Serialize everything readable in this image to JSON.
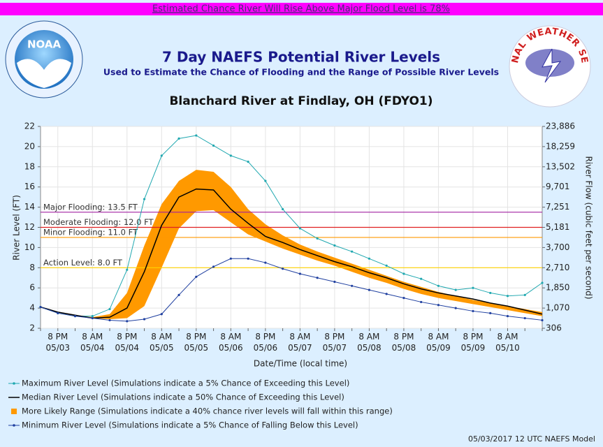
{
  "banner": "Estimated Chance River Will Rise Above Major Flood Level is 78%",
  "logos": {
    "noaa": "NOAA",
    "nws": "NATIONAL WEATHER SERVICE"
  },
  "footer": "05/03/2017 12 UTC NAEFS Model",
  "chart_data": {
    "type": "line",
    "title": "7 Day NAEFS Potential River Levels",
    "subtitle": "Used to Estimate the Chance of Flooding and the Range of Possible River Levels",
    "location": "Blanchard River at Findlay, OH (FDYO1)",
    "x_label": "Date/Time (local time)",
    "y_label": "River Level (FT)",
    "y2_label": "River Flow (cubic feet per second)",
    "categories": [
      null,
      "8 PM 05/03",
      null,
      "8 AM 05/04",
      null,
      "8 PM 05/04",
      null,
      "8 AM 05/05",
      null,
      "8 PM 05/05",
      null,
      "8 AM 05/06",
      null,
      "8 PM 05/06",
      null,
      "8 AM 05/07",
      null,
      "8 PM 05/07",
      null,
      "8 AM 05/08",
      null,
      "8 PM 05/08",
      null,
      "8 AM 05/09",
      null,
      "8 PM 05/09",
      null,
      "8 AM 05/10",
      null,
      null
    ],
    "ylim": [
      2,
      22
    ],
    "yticks": [
      2,
      4,
      6,
      8,
      10,
      12,
      14,
      16,
      18,
      20,
      22
    ],
    "y2ticks": [
      306,
      {
        "value": 1070,
        "label": "1,070"
      },
      {
        "value": 1850,
        "label": "1,850"
      },
      {
        "value": 2710,
        "label": "2,710"
      },
      {
        "value": 3700,
        "label": "3,700"
      },
      {
        "value": 5181,
        "label": "5,181"
      },
      {
        "value": 7251,
        "label": "7,251"
      },
      {
        "value": 9701,
        "label": "9,701"
      },
      {
        "value": 13502,
        "label": "13,502"
      },
      {
        "value": 18259,
        "label": "18,259"
      },
      {
        "value": 23886,
        "label": "23,886"
      }
    ],
    "grid": true,
    "thresholds": [
      {
        "label": "Major Flooding: 13.5 FT",
        "value": 13.5,
        "color": "#a020a0"
      },
      {
        "label": "Moderate Flooding: 12.0 FT",
        "value": 12.0,
        "color": "#e02020"
      },
      {
        "label": "Minor Flooding: 11.0 FT",
        "value": 11.0,
        "color": "#ff9900"
      },
      {
        "label": "Action Level: 8.0 FT",
        "value": 8.0,
        "color": "#ffd400"
      }
    ],
    "series": [
      {
        "name": "Maximum River Level (Simulations indicate a 5% Chance of Exceeding this Level)",
        "color": "#20a8b0",
        "values": [
          4.1,
          3.5,
          3.2,
          3.2,
          3.9,
          7.8,
          14.8,
          19.1,
          20.8,
          21.1,
          20.1,
          19.1,
          18.5,
          16.6,
          13.8,
          11.9,
          10.9,
          10.2,
          9.6,
          8.9,
          8.2,
          7.4,
          6.9,
          6.2,
          5.8,
          6.0,
          5.5,
          5.2,
          5.3,
          6.5
        ]
      },
      {
        "name": "Median River Level (Simulations indicate a 50% Chance of Exceeding this Level)",
        "color": "#000000",
        "values": [
          4.1,
          3.6,
          3.3,
          3.0,
          3.1,
          4.0,
          7.6,
          12.2,
          15.0,
          15.8,
          15.7,
          13.8,
          12.4,
          11.1,
          10.5,
          9.8,
          9.2,
          8.6,
          8.1,
          7.5,
          7.0,
          6.4,
          5.9,
          5.5,
          5.2,
          4.9,
          4.5,
          4.2,
          3.8,
          3.4
        ]
      },
      {
        "name": "More Likely Range (Simulations indicate a 40% chance river levels will fall within this range)",
        "color": "#ff9900",
        "upper": [
          4.1,
          3.6,
          3.3,
          3.1,
          3.4,
          5.5,
          10.2,
          14.3,
          16.6,
          17.7,
          17.5,
          16.0,
          13.8,
          12.3,
          11.2,
          10.3,
          9.6,
          9.0,
          8.4,
          7.8,
          7.2,
          6.6,
          6.1,
          5.6,
          5.2,
          4.8,
          4.5,
          4.2,
          3.9,
          3.6
        ],
        "lower": [
          4.1,
          3.6,
          3.2,
          3.0,
          2.9,
          3.0,
          4.2,
          8.0,
          11.9,
          13.6,
          13.7,
          12.5,
          11.3,
          10.6,
          9.9,
          9.3,
          8.7,
          8.2,
          7.6,
          7.0,
          6.5,
          5.9,
          5.4,
          5.0,
          4.7,
          4.4,
          4.1,
          3.8,
          3.5,
          3.2
        ]
      },
      {
        "name": "Minimum River Level (Simulations indicate a 5% Chance of Falling Below this Level)",
        "color": "#2040a0",
        "values": [
          4.1,
          3.5,
          3.2,
          3.0,
          2.8,
          2.7,
          2.9,
          3.4,
          5.3,
          7.1,
          8.1,
          8.9,
          8.9,
          8.5,
          7.9,
          7.4,
          7.0,
          6.6,
          6.2,
          5.8,
          5.4,
          5.0,
          4.6,
          4.3,
          4.0,
          3.7,
          3.5,
          3.2,
          3.0,
          2.8
        ]
      }
    ]
  }
}
